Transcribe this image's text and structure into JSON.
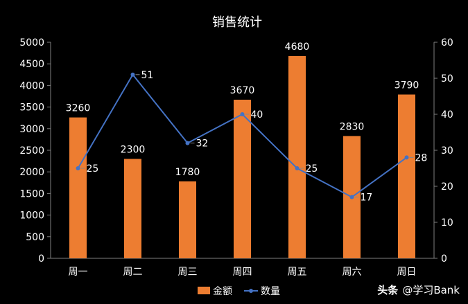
{
  "chart_data": {
    "type": "bar",
    "title": "销售统计",
    "categories": [
      "周一",
      "周二",
      "周三",
      "周四",
      "周五",
      "周六",
      "周日"
    ],
    "series": [
      {
        "name": "金额",
        "type": "bar",
        "axis": "left",
        "color": "#ED7D31",
        "values": [
          3260,
          2300,
          1780,
          3670,
          4680,
          2830,
          3790
        ]
      },
      {
        "name": "数量",
        "type": "line",
        "axis": "right",
        "color": "#4472C4",
        "values": [
          25,
          51,
          32,
          40,
          25,
          17,
          28
        ]
      }
    ],
    "y_left": {
      "min": 0,
      "max": 5000,
      "step": 500
    },
    "y_right": {
      "min": 0,
      "max": 60,
      "step": 10
    },
    "grid": false,
    "legend_position": "bottom"
  },
  "watermark": {
    "brand": "头条",
    "handle": "@学习Bank"
  }
}
